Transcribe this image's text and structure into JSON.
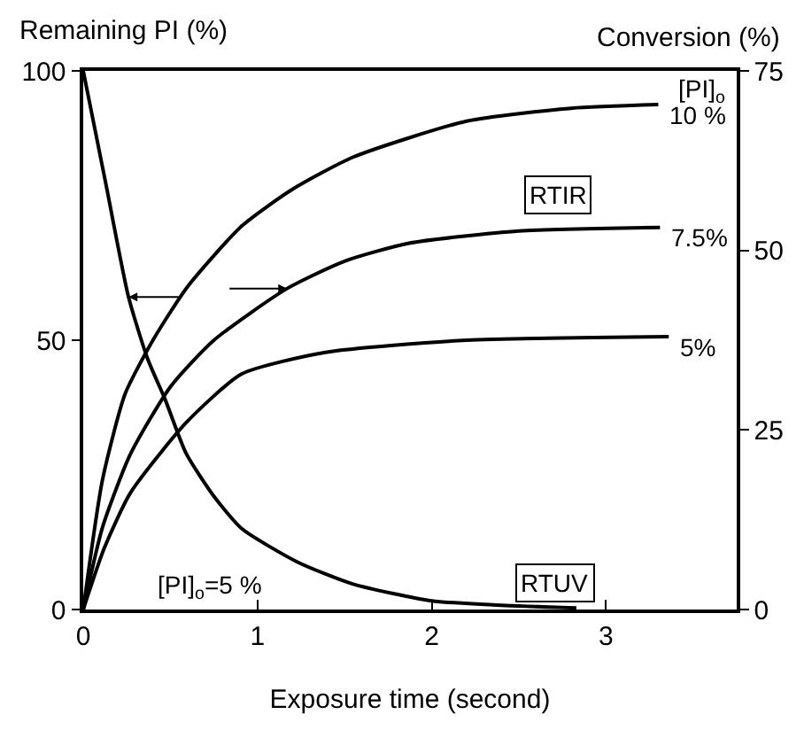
{
  "chart_data": {
    "type": "line",
    "xlabel": "Exposure time (second)",
    "ylabel": "Remaining PI (%)",
    "y2label": "Conversion (%)",
    "xlim": [
      0,
      3.75
    ],
    "xticks": [
      0,
      1,
      2,
      3
    ],
    "ylim": [
      0,
      100
    ],
    "yticks": [
      0,
      50,
      100
    ],
    "y2lim": [
      0,
      75
    ],
    "y2ticks": [
      0,
      25,
      50,
      75
    ],
    "marker": "none",
    "line_style": "solid",
    "series": [
      {
        "color": "#000000",
        "x": [
          0,
          0.13,
          0.26,
          0.37,
          0.47,
          0.59,
          0.75,
          0.91,
          1.23,
          1.55,
          2.0,
          2.4,
          2.83
        ],
        "values": [
          100,
          79,
          58,
          46.5,
          39,
          29,
          21,
          15,
          8.8,
          4.7,
          1.6,
          0.8,
          0.3
        ]
      },
      {
        "name": "10 %",
        "axis": "y2",
        "color": "#000000",
        "x": [
          0,
          0.11,
          0.24,
          0.4,
          0.6,
          0.91,
          1.2,
          1.55,
          2.2,
          2.8,
          3.3
        ],
        "values": [
          0,
          18,
          30,
          37.5,
          45,
          53.4,
          58.5,
          63,
          68,
          69.8,
          70.3
        ]
      },
      {
        "name": "7.5%",
        "axis": "y2",
        "color": "#000000",
        "x": [
          0,
          0.11,
          0.27,
          0.5,
          0.75,
          1.17,
          1.5,
          1.87,
          2.5,
          3.31
        ],
        "values": [
          0,
          11.4,
          21.6,
          31,
          37.5,
          44.7,
          48.5,
          51,
          52.7,
          53.2
        ]
      },
      {
        "name": "5%",
        "axis": "y2",
        "color": "#000000",
        "x": [
          0,
          0.12,
          0.27,
          0.59,
          0.91,
          1.39,
          2.2,
          3.36
        ],
        "values": [
          0,
          8.5,
          16.2,
          26,
          32.8,
          35.8,
          37.5,
          38
        ]
      }
    ],
    "annotations": [
      "RTIR",
      "RTUV",
      "[PI]$_{o}$=5 %",
      "[PI]$_{o}$"
    ]
  }
}
